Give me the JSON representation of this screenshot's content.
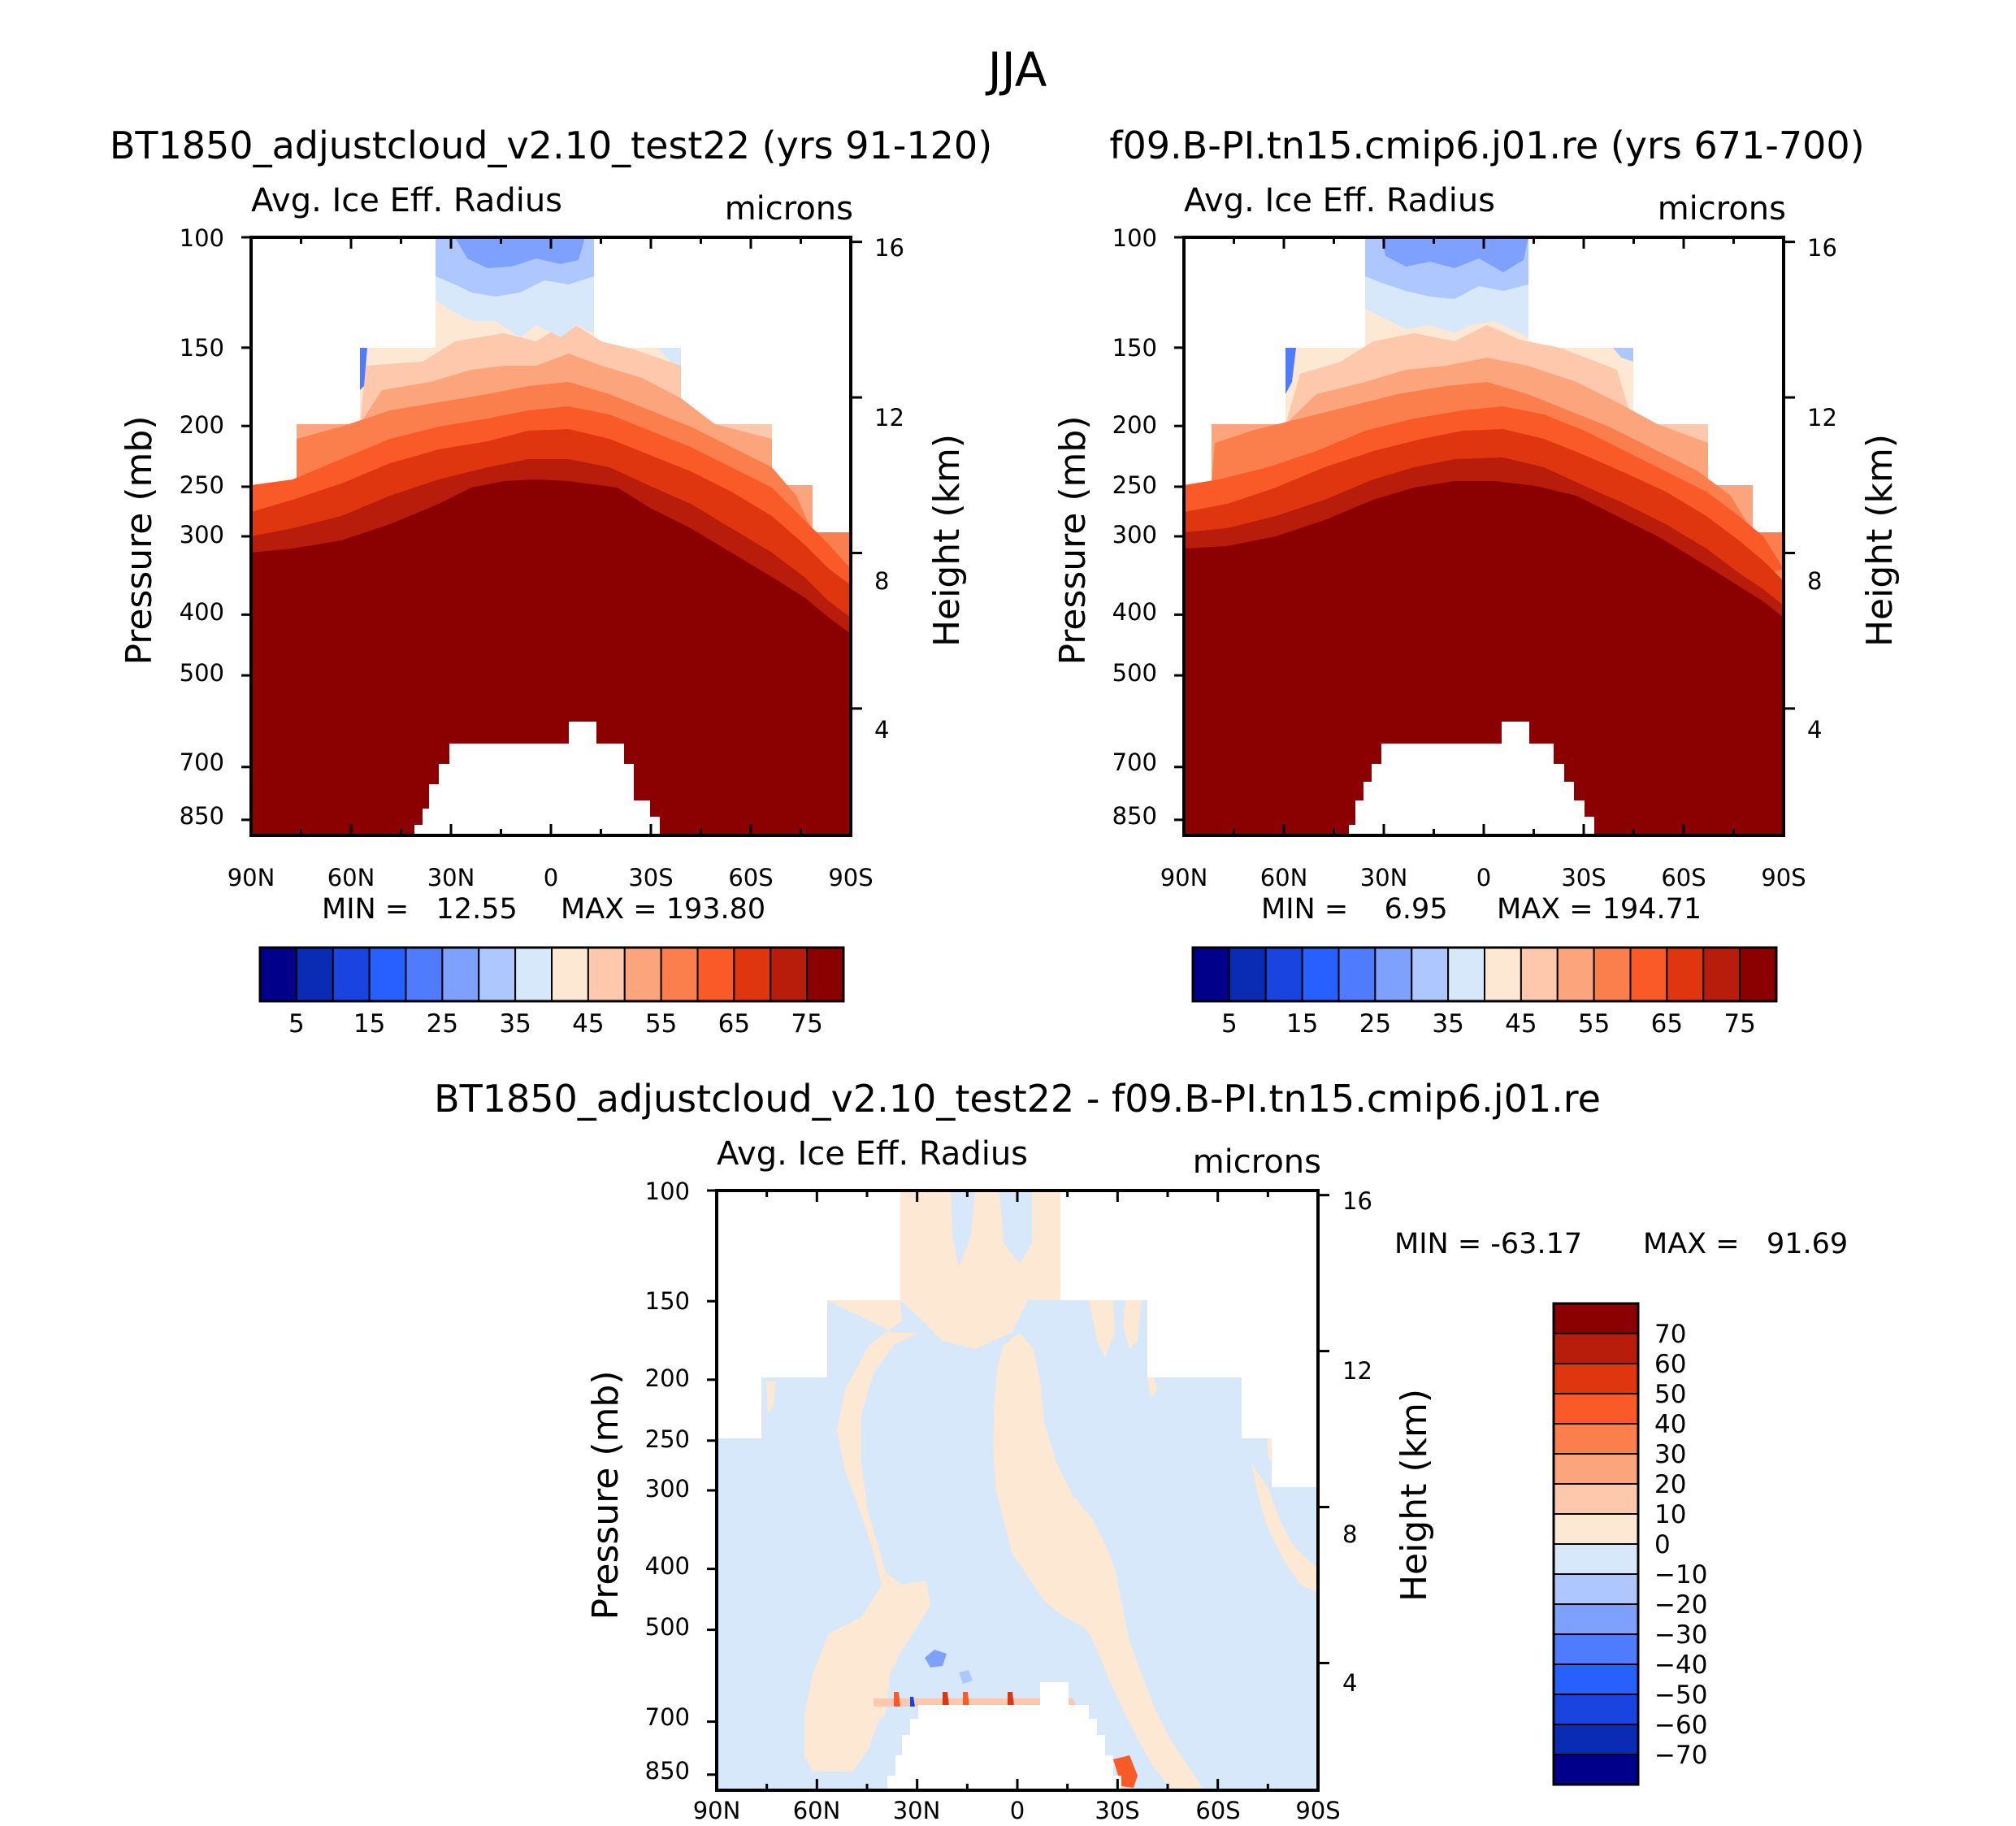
{
  "figure_title": "JJA",
  "chart_data": [
    {
      "type": "heatmap",
      "panel": "top-left",
      "title": "BT1850_adjustcloud_v2.10_test22 (yrs 91-120)",
      "left_label": "Avg. Ice Eff. Radius",
      "right_label": "microns",
      "ylabel": "Pressure (mb)",
      "y2label": "Height (km)",
      "x_ticks": [
        "90N",
        "60N",
        "30N",
        "0",
        "30S",
        "60S",
        "90S"
      ],
      "y_ticks": [
        "100",
        "150",
        "200",
        "250",
        "300",
        "400",
        "500",
        "700",
        "850"
      ],
      "y2_ticks": [
        "16",
        "12",
        "8",
        "4"
      ],
      "xlim": [
        90,
        -90
      ],
      "ylim_mb": [
        100,
        900
      ],
      "min_label": "MIN =   12.55",
      "max_label": "MAX = 193.80",
      "colorbar": {
        "orientation": "horizontal",
        "labels": [
          "5",
          "15",
          "25",
          "35",
          "45",
          "55",
          "65",
          "75"
        ],
        "levels": [
          5,
          10,
          15,
          20,
          25,
          30,
          35,
          40,
          45,
          50,
          55,
          60,
          65,
          70,
          75
        ]
      }
    },
    {
      "type": "heatmap",
      "panel": "top-right",
      "title": "f09.B-PI.tn15.cmip6.j01.re (yrs 671-700)",
      "left_label": "Avg. Ice Eff. Radius",
      "right_label": "microns",
      "ylabel": "Pressure (mb)",
      "y2label": "Height (km)",
      "x_ticks": [
        "90N",
        "60N",
        "30N",
        "0",
        "30S",
        "60S",
        "90S"
      ],
      "y_ticks": [
        "100",
        "150",
        "200",
        "250",
        "300",
        "400",
        "500",
        "700",
        "850"
      ],
      "y2_ticks": [
        "16",
        "12",
        "8",
        "4"
      ],
      "xlim": [
        90,
        -90
      ],
      "ylim_mb": [
        100,
        900
      ],
      "min_label": "MIN =    6.95",
      "max_label": "MAX = 194.71",
      "colorbar": {
        "orientation": "horizontal",
        "labels": [
          "5",
          "15",
          "25",
          "35",
          "45",
          "55",
          "65",
          "75"
        ],
        "levels": [
          5,
          10,
          15,
          20,
          25,
          30,
          35,
          40,
          45,
          50,
          55,
          60,
          65,
          70,
          75
        ]
      }
    },
    {
      "type": "heatmap",
      "panel": "bottom",
      "title": "BT1850_adjustcloud_v2.10_test22 - f09.B-PI.tn15.cmip6.j01.re",
      "left_label": "Avg. Ice Eff. Radius",
      "right_label": "microns",
      "ylabel": "Pressure (mb)",
      "y2label": "Height (km)",
      "x_ticks": [
        "90N",
        "60N",
        "30N",
        "0",
        "30S",
        "60S",
        "90S"
      ],
      "y_ticks": [
        "100",
        "150",
        "200",
        "250",
        "300",
        "400",
        "500",
        "700",
        "850"
      ],
      "y2_ticks": [
        "16",
        "12",
        "8",
        "4"
      ],
      "xlim": [
        90,
        -90
      ],
      "ylim_mb": [
        100,
        900
      ],
      "min_label": "MIN = -63.17",
      "max_label": "MAX =   91.69",
      "colorbar": {
        "orientation": "vertical",
        "labels": [
          "70",
          "60",
          "50",
          "40",
          "30",
          "20",
          "10",
          "0",
          "-10",
          "-20",
          "-30",
          "-40",
          "-50",
          "-60",
          "-70"
        ],
        "levels": [
          70,
          60,
          50,
          40,
          30,
          20,
          10,
          0,
          -10,
          -20,
          -30,
          -40,
          -50,
          -60,
          -70
        ]
      }
    }
  ],
  "colors": {
    "seq": [
      "#00008b",
      "#0a2bb4",
      "#1a44e0",
      "#2860ff",
      "#4f7cff",
      "#7ea1ff",
      "#aec8ff",
      "#d6e8fa",
      "#fde8d4",
      "#fdc8ac",
      "#fca47c",
      "#fb7f4d",
      "#fa5a28",
      "#e0360f",
      "#b81c0a",
      "#8b0000"
    ],
    "div": [
      "#8b0000",
      "#b81c0a",
      "#e0360f",
      "#fa5a28",
      "#fb7f4d",
      "#fca47c",
      "#fdc8ac",
      "#fde8d4",
      "#d6e8fa",
      "#aec8ff",
      "#7ea1ff",
      "#4f7cff",
      "#2860ff",
      "#1a44e0",
      "#0a2bb4",
      "#00008b"
    ]
  }
}
